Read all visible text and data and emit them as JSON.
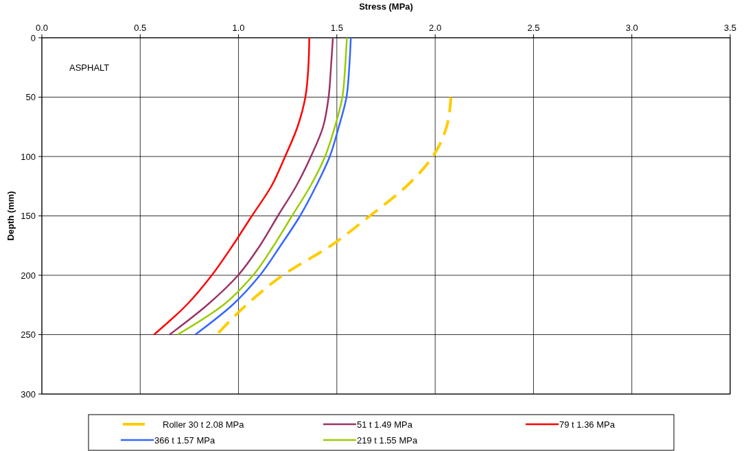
{
  "chart_data": {
    "type": "line",
    "xlabel": "Stress (MPa)",
    "ylabel": "Depth (mm)",
    "xlim": [
      0,
      3.5
    ],
    "xticks": [
      {
        "value": 0,
        "label": "0.0"
      },
      {
        "value": 0.5,
        "label": "0.5"
      },
      {
        "value": 1,
        "label": "1.0"
      },
      {
        "value": 1.5,
        "label": "1.5"
      },
      {
        "value": 2,
        "label": "2.0"
      },
      {
        "value": 2.5,
        "label": "2.5"
      },
      {
        "value": 3,
        "label": "3.0"
      },
      {
        "value": 3.5,
        "label": "3.5"
      }
    ],
    "ylim": [
      300,
      0
    ],
    "yticks": [
      0,
      50,
      100,
      150,
      200,
      250,
      300
    ],
    "grid": true,
    "legend": "bottom",
    "annotations": [
      "ASPHALT"
    ],
    "series": [
      {
        "name": "Roller 30 t 2.08 MPa",
        "color": "#ffcc00",
        "line_style": "dashed",
        "x": [
          2.08,
          2.058,
          1.988,
          1.854,
          1.668,
          1.47,
          1.225,
          1.04,
          0.89
        ],
        "values": [
          50,
          75,
          100,
          125,
          150,
          175,
          200,
          225,
          250
        ]
      },
      {
        "name": "51 t 1.49 MPa",
        "color": "#993366",
        "x": [
          1.48,
          1.47,
          1.458,
          1.43,
          1.368,
          1.293,
          1.2,
          1.109,
          0.998,
          0.841,
          0.649
        ],
        "values": [
          0,
          25,
          50,
          75,
          100,
          125,
          150,
          175,
          200,
          225,
          250
        ]
      },
      {
        "name": "79 t 1.36 MPa",
        "color": "#ff0000",
        "x": [
          1.36,
          1.355,
          1.34,
          1.3,
          1.237,
          1.167,
          1.068,
          0.97,
          0.864,
          0.736,
          0.57
        ],
        "values": [
          0,
          25,
          50,
          75,
          100,
          125,
          150,
          175,
          200,
          225,
          250
        ]
      },
      {
        "name": "366 t 1.57 MPa",
        "color": "#3366ff",
        "x": [
          1.571,
          1.563,
          1.549,
          1.51,
          1.464,
          1.394,
          1.313,
          1.214,
          1.109,
          0.969,
          0.78
        ],
        "values": [
          0,
          25,
          50,
          75,
          100,
          125,
          150,
          175,
          200,
          225,
          250
        ]
      },
      {
        "name": "219 t 1.55 MPa",
        "color": "#99cc00",
        "x": [
          1.551,
          1.542,
          1.528,
          1.49,
          1.44,
          1.365,
          1.272,
          1.179,
          1.074,
          0.923,
          0.69
        ],
        "values": [
          0,
          25,
          50,
          75,
          100,
          125,
          150,
          175,
          200,
          225,
          250
        ]
      }
    ]
  }
}
